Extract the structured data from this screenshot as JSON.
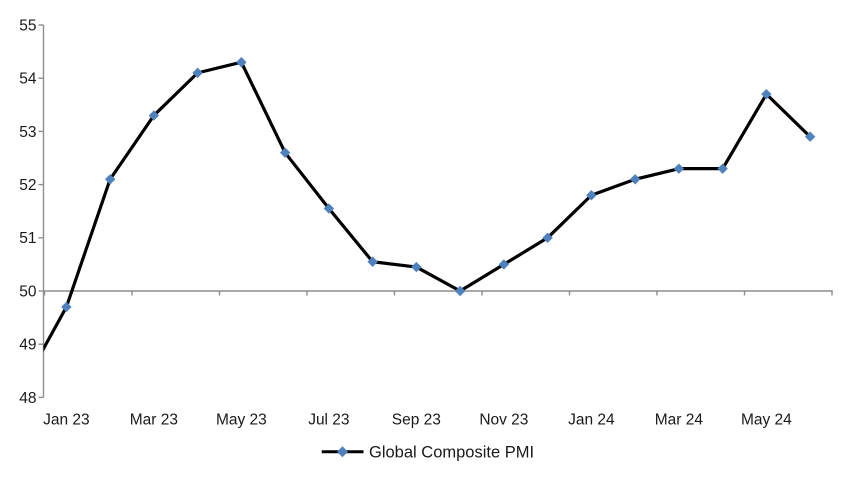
{
  "chart_data": {
    "type": "line",
    "title": "",
    "legend": {
      "label": "Global Composite PMI",
      "position": "bottom-center",
      "sample": "black-line-with-blue-diamond"
    },
    "x_categories": [
      "Dec 22",
      "Jan 23",
      "Feb 23",
      "Mar 23",
      "Apr 23",
      "May 23",
      "Jun 23",
      "Jul 23",
      "Aug 23",
      "Sep 23",
      "Oct 23",
      "Nov 23",
      "Dec 23",
      "Jan 24",
      "Feb 24",
      "Mar 24",
      "Apr 24",
      "May 24",
      "Jun 24"
    ],
    "series": [
      {
        "name": "Global Composite PMI",
        "values": [
          48.2,
          49.7,
          52.1,
          53.3,
          54.1,
          54.3,
          52.6,
          51.55,
          50.55,
          50.45,
          50.0,
          50.5,
          51.0,
          51.8,
          52.1,
          52.3,
          52.3,
          53.7,
          52.9
        ],
        "line_color": "#000000",
        "marker": "diamond",
        "marker_color": "#4F81BD",
        "first_point_clipped_at_left_axis": true
      }
    ],
    "x_axis": {
      "visible_labels": [
        "Jan 23",
        "Mar 23",
        "May 23",
        "Jul 23",
        "Sep 23",
        "Nov 23",
        "Jan 24",
        "Mar 24",
        "May 24"
      ],
      "label_interval_months": 2,
      "tick_interval_months": 2,
      "axis_line_crosses_at_value": 50,
      "labels_at": "bottom"
    },
    "y_axis": {
      "min": 48,
      "max": 55,
      "step": 1,
      "labels": [
        "55",
        "54",
        "53",
        "52",
        "51",
        "50",
        "49",
        "48"
      ]
    },
    "layout_hints": {
      "grid": "off",
      "legend_position": "bottom",
      "plot_background": "#FFFFFF",
      "axis_color": "#8E8E8E",
      "text_color": "#1A1A1A"
    }
  }
}
